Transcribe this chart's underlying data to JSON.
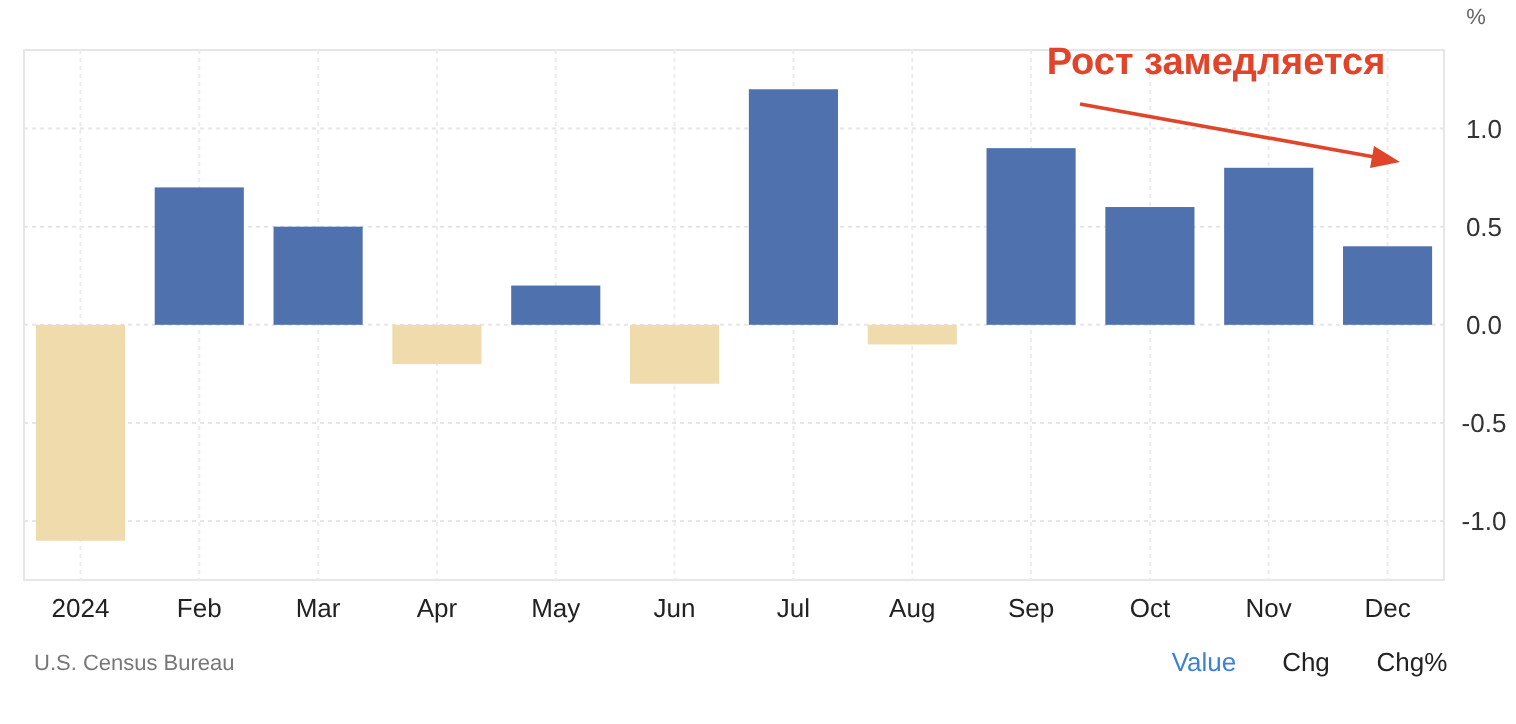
{
  "chart_data": {
    "type": "bar",
    "ylabel": "%",
    "categories": [
      "2024",
      "Feb",
      "Mar",
      "Apr",
      "May",
      "Jun",
      "Jul",
      "Aug",
      "Sep",
      "Oct",
      "Nov",
      "Dec"
    ],
    "values": [
      -1.1,
      0.7,
      0.5,
      -0.2,
      0.2,
      -0.3,
      1.2,
      -0.1,
      0.9,
      0.6,
      0.8,
      0.4
    ],
    "colors": [
      "#efdbab",
      "#4f71ae",
      "#4f71ae",
      "#efdbab",
      "#4f71ae",
      "#efdbab",
      "#4f71ae",
      "#efdbab",
      "#4f71ae",
      "#4f71ae",
      "#4f71ae",
      "#4f71ae"
    ],
    "ylim": [
      -1.3,
      1.4
    ],
    "yticks": [
      {
        "value": -1,
        "label": "-1.0"
      },
      {
        "value": -0.5,
        "label": "-0.5"
      },
      {
        "value": 0,
        "label": "0.0"
      },
      {
        "value": 0.5,
        "label": "0.5"
      },
      {
        "value": 1,
        "label": "1.0"
      }
    ],
    "grid": true,
    "annotations": [
      "Рост замедляется",
      "U.S. Census Bureau",
      "Value",
      "Chg",
      "Chg%"
    ]
  }
}
